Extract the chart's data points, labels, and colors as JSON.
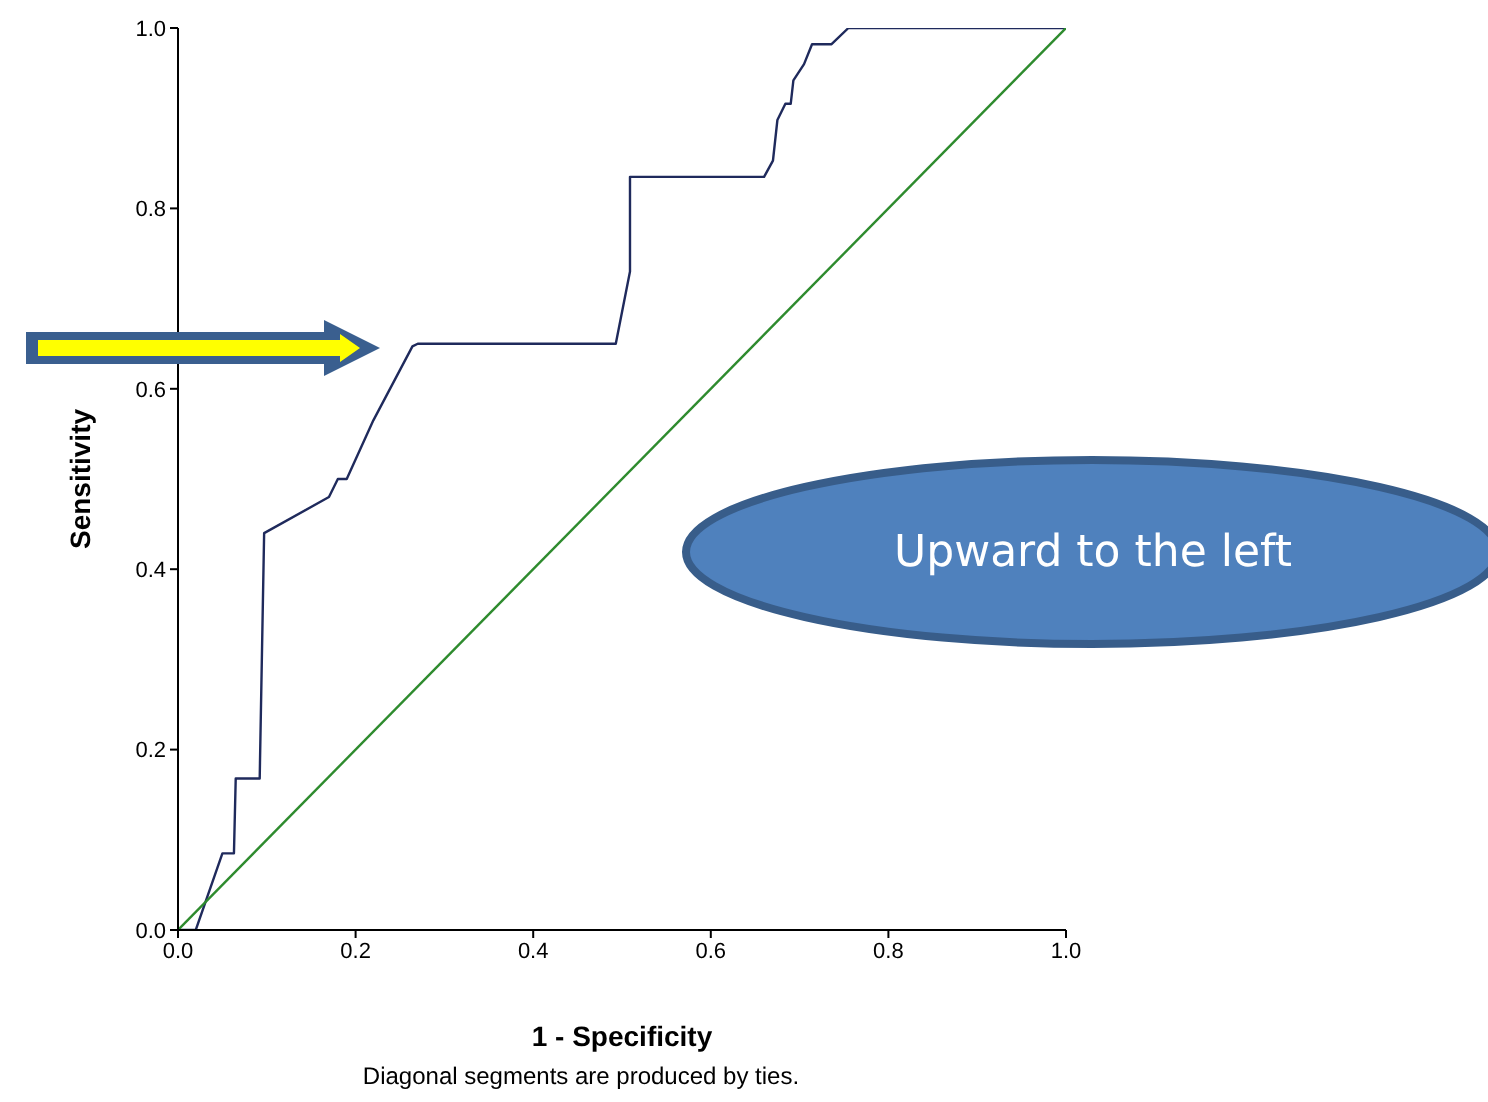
{
  "chart_data": {
    "type": "line",
    "xlabel": "1 - Specificity",
    "ylabel": "Sensitivity",
    "xlim": [
      0,
      1
    ],
    "ylim": [
      0,
      1
    ],
    "xticks": [
      {
        "value": 0,
        "label": "0.0"
      },
      {
        "value": 0.2,
        "label": "0.2"
      },
      {
        "value": 0.4,
        "label": "0.4"
      },
      {
        "value": 0.6,
        "label": "0.6"
      },
      {
        "value": 0.8,
        "label": "0.8"
      },
      {
        "value": 1,
        "label": "1.0"
      }
    ],
    "yticks": [
      {
        "value": 0,
        "label": "0.0"
      },
      {
        "value": 0.2,
        "label": "0.2"
      },
      {
        "value": 0.4,
        "label": "0.4"
      },
      {
        "value": 0.6,
        "label": "0.6"
      },
      {
        "value": 0.8,
        "label": "0.8"
      },
      {
        "value": 1,
        "label": "1.0"
      }
    ],
    "series": [
      {
        "color": "#1f2a5c",
        "x": [
          0,
          0.02,
          0.05,
          0.063,
          0.065,
          0.092,
          0.097,
          0.17,
          0.18,
          0.19,
          0.22,
          0.264,
          0.27,
          0.493,
          0.509,
          0.509,
          0.66,
          0.67,
          0.675,
          0.684,
          0.69,
          0.693,
          0.705,
          0.714,
          0.736,
          0.755,
          1
        ],
        "values": [
          0,
          0,
          0.085,
          0.085,
          0.168,
          0.168,
          0.44,
          0.48,
          0.5,
          0.5,
          0.565,
          0.647,
          0.65,
          0.65,
          0.73,
          0.835,
          0.835,
          0.853,
          0.898,
          0.916,
          0.916,
          0.942,
          0.96,
          0.982,
          0.982,
          1,
          1
        ]
      },
      {
        "color": "#2e8b2e",
        "x": [
          0,
          1
        ],
        "values": [
          0,
          1
        ]
      }
    ],
    "marker": "none",
    "line_style": "solid",
    "annotations": [
      "Upward to the left",
      "Diagonal segments are produced by ties."
    ]
  }
}
